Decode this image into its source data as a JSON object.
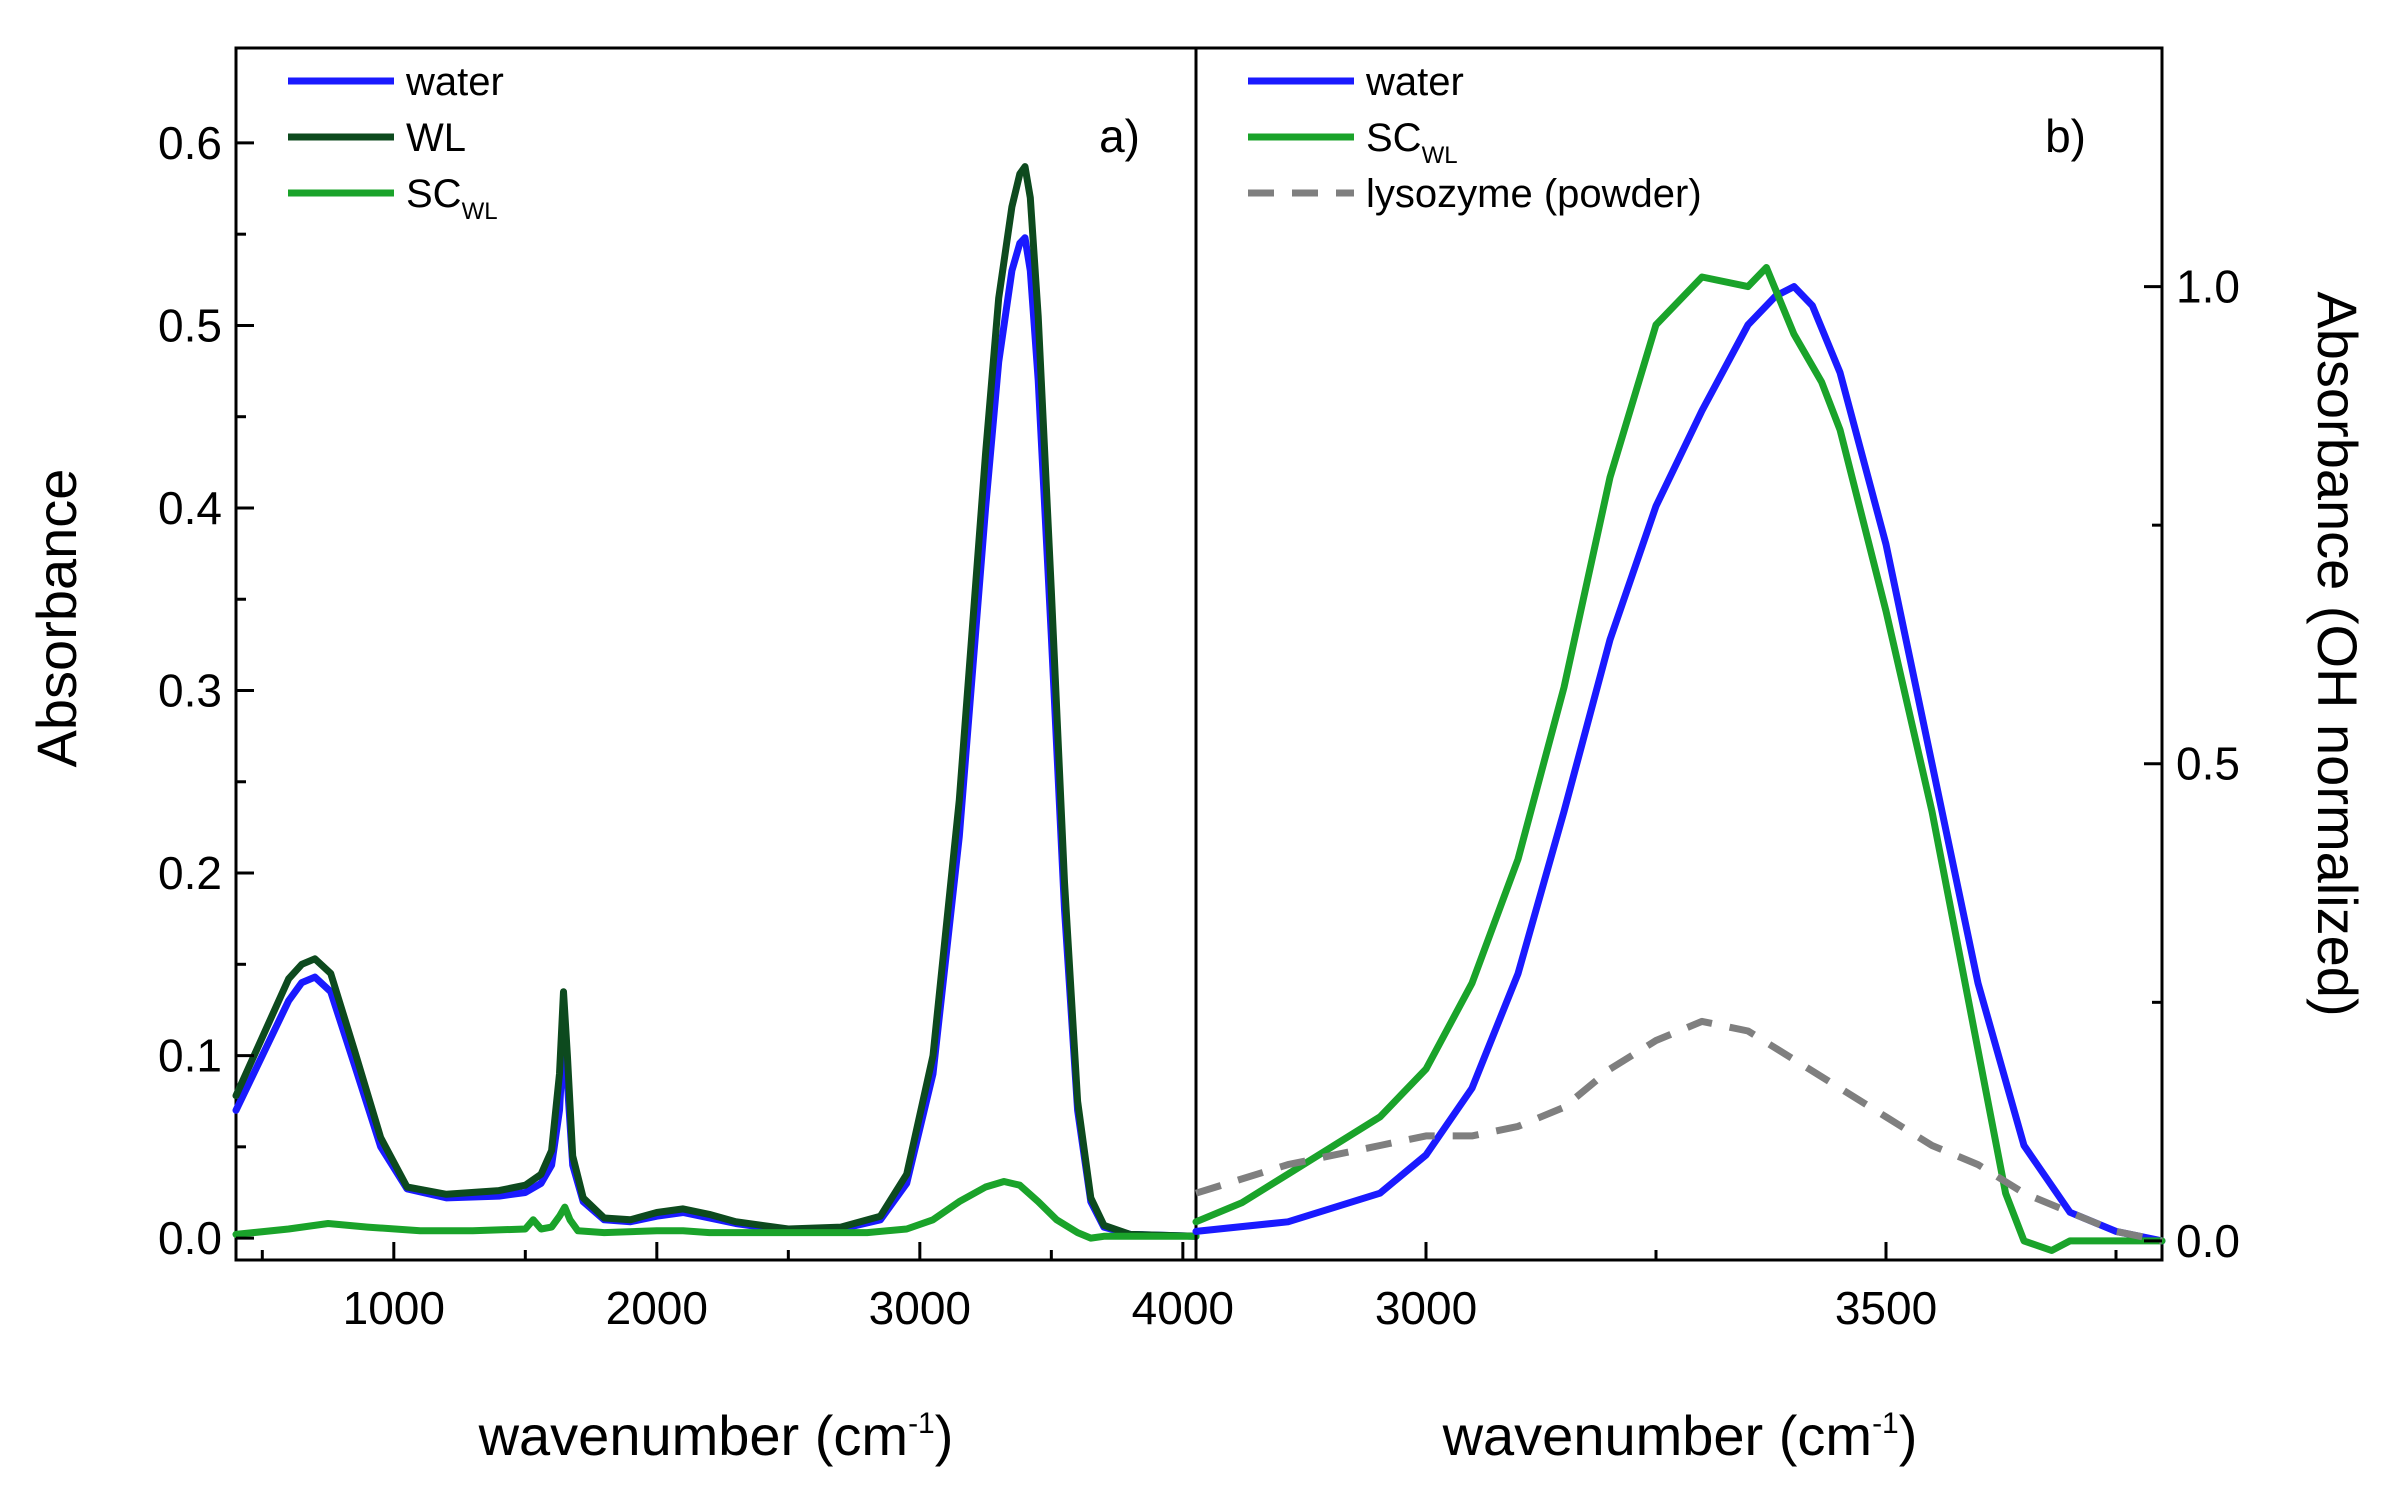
{
  "chart_data": [
    {
      "panel_label": "a)",
      "type": "line",
      "xlabel": "wavenumber (cm",
      "xlabel_sup": "-1",
      "xlabel_end": ")",
      "ylabel": "Absorbance",
      "xlim": [
        400,
        4050
      ],
      "ylim": [
        -0.012,
        0.652
      ],
      "x_ticks": [
        1000,
        2000,
        3000,
        4000
      ],
      "x_tick_labels": [
        "1000",
        "2000",
        "3000",
        "4000"
      ],
      "y_ticks": [
        0.0,
        0.1,
        0.2,
        0.3,
        0.4,
        0.5,
        0.6
      ],
      "y_tick_labels": [
        "0.0",
        "0.1",
        "0.2",
        "0.3",
        "0.4",
        "0.5",
        "0.6"
      ],
      "legend_position": "top-left",
      "series": [
        {
          "name": "water",
          "sub": "",
          "color": "#1a1aff",
          "x": [
            400,
            500,
            600,
            650,
            700,
            760,
            850,
            950,
            1050,
            1200,
            1400,
            1500,
            1560,
            1600,
            1630,
            1645,
            1660,
            1680,
            1720,
            1800,
            1900,
            2000,
            2100,
            2200,
            2300,
            2500,
            2700,
            2850,
            2950,
            3050,
            3150,
            3250,
            3300,
            3350,
            3380,
            3400,
            3420,
            3450,
            3500,
            3550,
            3600,
            3650,
            3700,
            3800,
            4050
          ],
          "y": [
            0.07,
            0.1,
            0.13,
            0.14,
            0.143,
            0.135,
            0.095,
            0.05,
            0.027,
            0.022,
            0.023,
            0.025,
            0.03,
            0.04,
            0.07,
            0.11,
            0.085,
            0.04,
            0.02,
            0.01,
            0.009,
            0.012,
            0.014,
            0.011,
            0.008,
            0.004,
            0.005,
            0.01,
            0.03,
            0.09,
            0.22,
            0.4,
            0.48,
            0.53,
            0.545,
            0.548,
            0.53,
            0.47,
            0.33,
            0.18,
            0.07,
            0.02,
            0.006,
            0.002,
            0.001
          ]
        },
        {
          "name": "WL",
          "sub": "",
          "color": "#0d4a1e",
          "x": [
            400,
            500,
            600,
            650,
            700,
            760,
            850,
            950,
            1050,
            1200,
            1400,
            1500,
            1560,
            1600,
            1630,
            1645,
            1660,
            1680,
            1720,
            1800,
            1900,
            2000,
            2100,
            2200,
            2300,
            2500,
            2700,
            2850,
            2950,
            3050,
            3150,
            3250,
            3300,
            3350,
            3380,
            3400,
            3420,
            3450,
            3500,
            3550,
            3600,
            3650,
            3700,
            3800,
            4050
          ],
          "y": [
            0.078,
            0.11,
            0.142,
            0.15,
            0.153,
            0.145,
            0.103,
            0.055,
            0.028,
            0.024,
            0.026,
            0.029,
            0.035,
            0.048,
            0.09,
            0.135,
            0.1,
            0.045,
            0.022,
            0.011,
            0.01,
            0.014,
            0.016,
            0.013,
            0.009,
            0.005,
            0.006,
            0.012,
            0.035,
            0.1,
            0.24,
            0.43,
            0.515,
            0.565,
            0.583,
            0.587,
            0.57,
            0.505,
            0.355,
            0.195,
            0.075,
            0.022,
            0.007,
            0.002,
            0.001
          ]
        },
        {
          "name": "SC",
          "sub": "WL",
          "color": "#1aa32a",
          "x": [
            400,
            600,
            750,
            900,
            1100,
            1300,
            1500,
            1530,
            1560,
            1600,
            1630,
            1650,
            1670,
            1700,
            1800,
            2000,
            2100,
            2200,
            2500,
            2800,
            2950,
            3050,
            3150,
            3250,
            3320,
            3380,
            3450,
            3520,
            3600,
            3650,
            3700,
            3800,
            4050
          ],
          "y": [
            0.002,
            0.005,
            0.008,
            0.006,
            0.004,
            0.004,
            0.005,
            0.01,
            0.005,
            0.006,
            0.012,
            0.017,
            0.01,
            0.004,
            0.003,
            0.004,
            0.004,
            0.003,
            0.003,
            0.003,
            0.005,
            0.01,
            0.02,
            0.028,
            0.031,
            0.029,
            0.02,
            0.01,
            0.003,
            0.0,
            0.001,
            0.001,
            0.001
          ]
        }
      ]
    },
    {
      "panel_label": "b)",
      "type": "line",
      "xlabel": "wavenumber (cm",
      "xlabel_sup": "-1",
      "xlabel_end": ")",
      "ylabel": "Absorbance (OH normalized)",
      "xlim": [
        2750,
        3800
      ],
      "ylim": [
        -0.02,
        1.25
      ],
      "x_ticks": [
        3000,
        3500
      ],
      "x_tick_labels": [
        "3000",
        "3500"
      ],
      "y_ticks": [
        0.0,
        0.5,
        1.0
      ],
      "y_tick_labels": [
        "0.0",
        "0.5",
        "1.0"
      ],
      "legend_position": "top-left",
      "series": [
        {
          "name": "water",
          "sub": "",
          "color": "#1a1aff",
          "dash": false,
          "x": [
            2750,
            2850,
            2950,
            3000,
            3050,
            3100,
            3150,
            3200,
            3250,
            3300,
            3350,
            3380,
            3400,
            3420,
            3450,
            3500,
            3550,
            3600,
            3650,
            3700,
            3750,
            3800
          ],
          "y": [
            0.01,
            0.02,
            0.05,
            0.09,
            0.16,
            0.28,
            0.45,
            0.63,
            0.77,
            0.87,
            0.96,
            0.99,
            1.0,
            0.98,
            0.91,
            0.73,
            0.5,
            0.27,
            0.1,
            0.03,
            0.01,
            0.0
          ]
        },
        {
          "name": "SC",
          "sub": "WL",
          "color": "#1aa32a",
          "dash": false,
          "x": [
            2750,
            2800,
            2850,
            2900,
            2950,
            3000,
            3050,
            3100,
            3150,
            3200,
            3250,
            3300,
            3350,
            3370,
            3400,
            3430,
            3450,
            3500,
            3550,
            3600,
            3630,
            3650,
            3680,
            3700,
            3750,
            3800
          ],
          "y": [
            0.02,
            0.04,
            0.07,
            0.1,
            0.13,
            0.18,
            0.27,
            0.4,
            0.58,
            0.8,
            0.96,
            1.01,
            1.0,
            1.02,
            0.95,
            0.9,
            0.85,
            0.66,
            0.45,
            0.2,
            0.05,
            0.0,
            -0.01,
            0.0,
            0.0,
            0.0
          ]
        },
        {
          "name": "lysozyme (powder)",
          "sub": "",
          "color": "#7f7f7f",
          "dash": true,
          "x": [
            2750,
            2850,
            2950,
            3000,
            3050,
            3100,
            3150,
            3200,
            3250,
            3300,
            3350,
            3400,
            3450,
            3500,
            3550,
            3600,
            3650,
            3700,
            3750,
            3800
          ],
          "y": [
            0.05,
            0.08,
            0.1,
            0.11,
            0.11,
            0.12,
            0.14,
            0.18,
            0.21,
            0.23,
            0.22,
            0.19,
            0.16,
            0.13,
            0.1,
            0.08,
            0.05,
            0.03,
            0.01,
            0.0
          ]
        }
      ]
    }
  ]
}
